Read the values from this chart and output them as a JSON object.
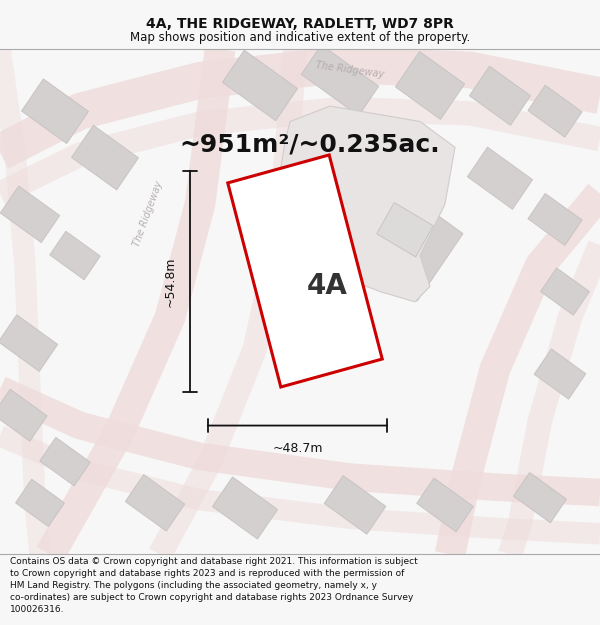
{
  "title": "4A, THE RIDGEWAY, RADLETT, WD7 8PR",
  "subtitle": "Map shows position and indicative extent of the property.",
  "area_text": "~951m²/~0.235ac.",
  "label_4a": "4A",
  "dim_height": "~54.8m",
  "dim_width": "~48.7m",
  "footer": "Contains OS data © Crown copyright and database right 2021. This information is subject to Crown copyright and database rights 2023 and is reproduced with the permission of HM Land Registry. The polygons (including the associated geometry, namely x, y co-ordinates) are subject to Crown copyright and database rights 2023 Ordnance Survey 100026316.",
  "bg_color": "#f7f7f7",
  "map_bg": "#eeecec",
  "road_fill": "#f5f0f0",
  "road_stroke": "#e8c0c0",
  "road_center": "#e09090",
  "block_color": "#d4d0d0",
  "block_stroke": "#c8c4c4",
  "plot_stroke": "#cc0000",
  "plot_fill": "#ffffff",
  "dim_color": "#111111",
  "title_color": "#111111",
  "footer_color": "#111111",
  "road_label_color": "#b0a8a8",
  "road_label_alpha": 0.9,
  "title_fontsize": 10,
  "subtitle_fontsize": 8.5,
  "area_fontsize": 18,
  "label_fontsize": 20,
  "dim_fontsize": 9,
  "footer_fontsize": 6.5
}
